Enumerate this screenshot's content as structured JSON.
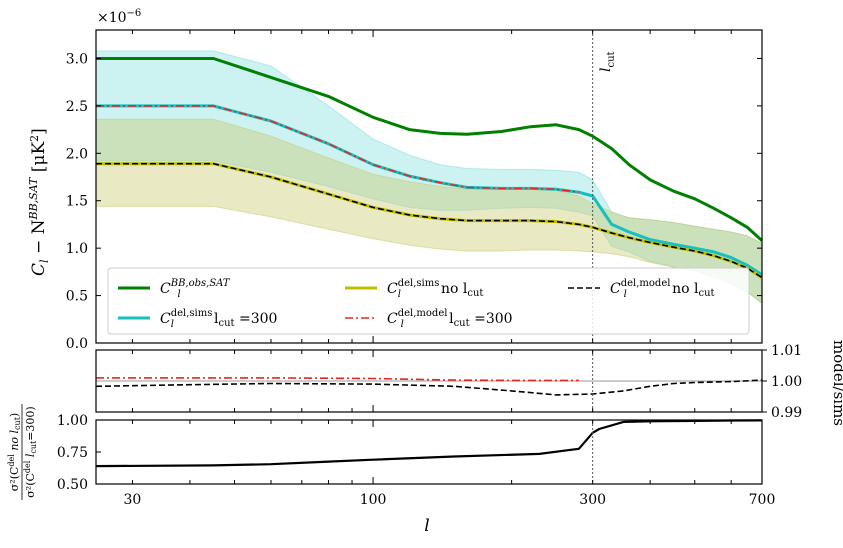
{
  "chart_data": [
    {
      "type": "line",
      "panel": "top",
      "xscale": "log",
      "xlim": [
        25,
        700
      ],
      "ylim": [
        0.0,
        3.3
      ],
      "y_multiplier": "×10⁻⁶",
      "ylabel": "C_l − N_l^{BB,SAT} [μK²]",
      "xticks": [
        "30",
        "100",
        "300",
        "700"
      ],
      "yticks": [
        "0.0",
        "0.5",
        "1.0",
        "1.5",
        "2.0",
        "2.5",
        "3.0"
      ],
      "vline": {
        "x": 300,
        "label": "l_cut"
      },
      "series": [
        {
          "name": "C_l^{BB,obs,SAT}",
          "color": "#008000",
          "style": "solid",
          "x": [
            25,
            45,
            60,
            80,
            100,
            120,
            140,
            160,
            190,
            220,
            250,
            280,
            300,
            330,
            360,
            400,
            450,
            500,
            550,
            600,
            650,
            700
          ],
          "y": [
            3.0,
            3.0,
            2.8,
            2.6,
            2.38,
            2.25,
            2.21,
            2.2,
            2.23,
            2.28,
            2.3,
            2.25,
            2.18,
            2.05,
            1.88,
            1.72,
            1.6,
            1.52,
            1.42,
            1.32,
            1.22,
            1.08
          ]
        },
        {
          "name": "C_l^{del,sims} l_cut=300",
          "color": "#17bfbf",
          "style": "solid",
          "x": [
            25,
            45,
            60,
            80,
            100,
            120,
            140,
            160,
            190,
            220,
            250,
            280,
            300,
            330,
            360,
            400,
            450,
            500,
            550,
            600,
            650,
            700
          ],
          "y": [
            2.5,
            2.5,
            2.34,
            2.1,
            1.88,
            1.76,
            1.69,
            1.64,
            1.63,
            1.63,
            1.62,
            1.59,
            1.55,
            1.25,
            1.17,
            1.09,
            1.04,
            1.0,
            0.96,
            0.9,
            0.82,
            0.72
          ]
        },
        {
          "name": "C_l^{del,model} l_cut=300",
          "color": "#e8261e",
          "style": "dashdot",
          "x": [
            25,
            45,
            60,
            80,
            100,
            120,
            140,
            160,
            190,
            220,
            250,
            280
          ],
          "y": [
            2.5,
            2.5,
            2.34,
            2.1,
            1.88,
            1.76,
            1.69,
            1.64,
            1.63,
            1.63,
            1.62,
            1.59
          ]
        },
        {
          "name": "C_l^{del,sims} no l_cut",
          "color": "#bfbf00",
          "style": "solid",
          "x": [
            25,
            45,
            60,
            80,
            100,
            120,
            140,
            160,
            190,
            220,
            250,
            280,
            300,
            330,
            360,
            400,
            450,
            500,
            550,
            600,
            650,
            700
          ],
          "y": [
            1.89,
            1.89,
            1.75,
            1.57,
            1.43,
            1.35,
            1.31,
            1.29,
            1.29,
            1.29,
            1.28,
            1.25,
            1.22,
            1.16,
            1.11,
            1.06,
            1.01,
            0.97,
            0.92,
            0.86,
            0.79,
            0.69
          ]
        },
        {
          "name": "C_l^{del,model} no l_cut",
          "color": "#000000",
          "style": "dashed",
          "x": [
            25,
            45,
            60,
            80,
            100,
            120,
            140,
            160,
            190,
            220,
            250,
            280,
            300,
            330,
            360,
            400,
            450,
            500,
            550,
            600,
            650,
            700
          ],
          "y": [
            1.89,
            1.89,
            1.75,
            1.57,
            1.43,
            1.35,
            1.31,
            1.29,
            1.29,
            1.29,
            1.28,
            1.25,
            1.22,
            1.16,
            1.11,
            1.06,
            1.01,
            0.97,
            0.92,
            0.86,
            0.79,
            0.69
          ]
        }
      ],
      "bands": [
        {
          "name": "sims l_cut=300 scatter",
          "color": "#7fdede",
          "x": [
            25,
            45,
            60,
            80,
            100,
            120,
            140,
            160,
            190,
            220,
            250,
            280,
            300,
            330,
            360,
            400,
            450,
            500,
            550,
            600,
            650,
            700
          ],
          "upper": [
            3.08,
            3.08,
            2.92,
            2.5,
            2.15,
            1.98,
            1.88,
            1.84,
            1.83,
            1.83,
            1.82,
            1.8,
            1.72,
            1.38,
            1.32,
            1.3,
            1.27,
            1.23,
            1.2,
            1.17,
            1.13,
            1.05
          ],
          "lower": [
            1.92,
            1.92,
            1.8,
            1.65,
            1.52,
            1.43,
            1.4,
            1.4,
            1.42,
            1.43,
            1.42,
            1.38,
            1.34,
            1.02,
            0.96,
            0.86,
            0.8,
            0.76,
            0.7,
            0.62,
            0.54,
            0.42
          ]
        },
        {
          "name": "sims no l_cut scatter",
          "color": "#c9c96a",
          "x": [
            25,
            45,
            60,
            80,
            100,
            120,
            140,
            160,
            190,
            220,
            250,
            280,
            300,
            330,
            360,
            400,
            450,
            500,
            550,
            600,
            650,
            700
          ],
          "upper": [
            2.36,
            2.36,
            2.18,
            1.95,
            1.78,
            1.7,
            1.65,
            1.62,
            1.62,
            1.62,
            1.61,
            1.55,
            1.47,
            1.38,
            1.32,
            1.3,
            1.27,
            1.23,
            1.2,
            1.17,
            1.13,
            1.05
          ],
          "lower": [
            1.44,
            1.44,
            1.33,
            1.2,
            1.1,
            1.03,
            0.99,
            0.97,
            0.97,
            0.98,
            0.98,
            0.97,
            0.96,
            0.94,
            0.91,
            0.85,
            0.8,
            0.76,
            0.7,
            0.62,
            0.54,
            0.42
          ]
        }
      ],
      "legend": {
        "placement": "lower-left",
        "ncol": 3
      },
      "legend_items": [
        {
          "main": "C",
          "sub": "l",
          "sup": "BB,obs,SAT",
          "suffix": ""
        },
        {
          "main": "C",
          "sub": "l",
          "sup": "del,sims",
          "suffix": " l",
          "suffix_sub": "cut",
          "suffix2": " =300"
        },
        {
          "main": "C",
          "sub": "l",
          "sup": "del,sims",
          "suffix": " no l",
          "suffix_sub": "cut",
          "suffix2": ""
        },
        {
          "main": "C",
          "sub": "l",
          "sup": "del,model",
          "suffix": " l",
          "suffix_sub": "cut",
          "suffix2": " =300"
        },
        {
          "main": "C",
          "sub": "l",
          "sup": "del,model",
          "suffix": " no l",
          "suffix_sub": "cut",
          "suffix2": ""
        }
      ]
    },
    {
      "type": "line",
      "panel": "middle",
      "xscale": "log",
      "ylim": [
        0.99,
        1.01
      ],
      "yticks": [
        "0.99",
        "1.00",
        "1.01"
      ],
      "ylabel": "model/sims",
      "ylabel_side": "right",
      "hline": 1.0,
      "series": [
        {
          "name": "ratio l_cut=300",
          "color": "#e8261e",
          "style": "dashdot",
          "x": [
            25,
            60,
            100,
            150,
            200,
            280
          ],
          "y": [
            1.001,
            1.001,
            1.0008,
            1.0003,
            1.0002,
            1.0002
          ]
        },
        {
          "name": "ratio no l_cut",
          "color": "#000000",
          "style": "dashed",
          "x": [
            25,
            40,
            60,
            100,
            150,
            200,
            250,
            300,
            350,
            400,
            450,
            500,
            600,
            700
          ],
          "y": [
            0.9983,
            0.9988,
            0.9992,
            0.999,
            0.9983,
            0.9968,
            0.9955,
            0.9958,
            0.9968,
            0.9983,
            0.9992,
            0.9995,
            0.9998,
            1.0003
          ]
        }
      ]
    },
    {
      "type": "line",
      "panel": "bottom",
      "xscale": "log",
      "ylim": [
        0.5,
        1.0
      ],
      "yticks": [
        "0.50",
        "0.75",
        "1.00"
      ],
      "ylabel": "σ²(C_l^{del} no l_cut) / σ²(C_l^{del} l_cut=300)",
      "xlabel": "l",
      "series": [
        {
          "name": "variance ratio",
          "color": "#000000",
          "style": "solid",
          "x": [
            25,
            45,
            60,
            80,
            100,
            150,
            230,
            260,
            280,
            300,
            310,
            350,
            400,
            500,
            600,
            700
          ],
          "y": [
            0.64,
            0.645,
            0.655,
            0.675,
            0.69,
            0.715,
            0.735,
            0.76,
            0.775,
            0.9,
            0.93,
            0.985,
            0.99,
            0.993,
            0.996,
            0.997
          ]
        }
      ]
    }
  ],
  "labels": {
    "y_multiplier": "×10",
    "y_multiplier_exp": "−6",
    "vline_label": "l",
    "vline_label_sub": "cut",
    "top_ylabel_main": "C",
    "top_ylabel_sub_l": "l",
    "top_ylabel_minus": " − N",
    "top_ylabel_sup": "BB,SAT",
    "top_ylabel_units": " [μK",
    "top_ylabel_units_sup": "2",
    "top_ylabel_units_end": "]",
    "right_ylabel": "model/sims",
    "bottom_ylabel_num": "σ²(C",
    "bottom_ylabel_num_sup": "del",
    "bottom_ylabel_num_rest": " no l",
    "bottom_ylabel_den": "σ²(C",
    "bottom_ylabel_den_sup": "del",
    "bottom_ylabel_den_rest": " l",
    "bottom_ylabel_den_end": "=300)",
    "bottom_ylabel_sub_l": "l",
    "bottom_ylabel_sub_cut": "cut",
    "bottom_ylabel_close": ")",
    "xlabel": "l"
  }
}
